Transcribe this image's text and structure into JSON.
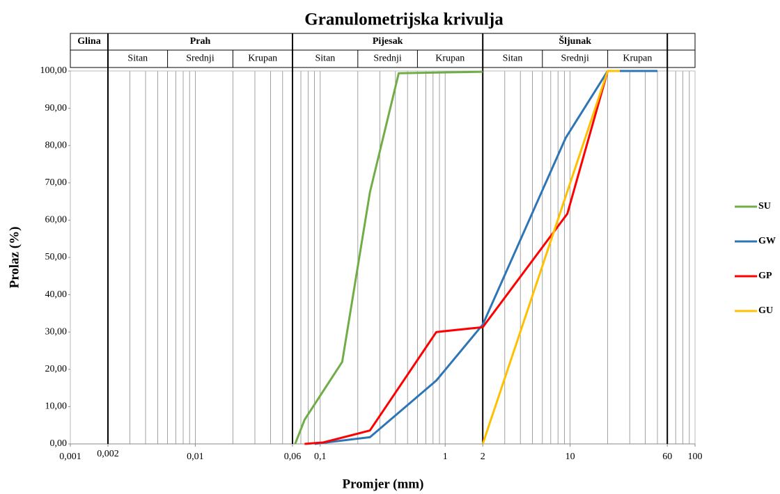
{
  "chart_data": {
    "type": "line",
    "title": "Granulometrijska krivulja",
    "xlabel": "Promjer (mm)",
    "ylabel": "Prolaz (%)",
    "xscale": "log",
    "xlim": [
      0.001,
      100
    ],
    "ylim": [
      0,
      100
    ],
    "xticks": [
      {
        "value": 0.001,
        "label": "0,001"
      },
      {
        "value": 0.002,
        "label": "0,002"
      },
      {
        "value": 0.01,
        "label": "0,01"
      },
      {
        "value": 0.06,
        "label": "0,06"
      },
      {
        "value": 0.1,
        "label": "0,1"
      },
      1,
      2,
      10,
      60,
      100
    ],
    "yticks": [
      {
        "value": 0,
        "label": "0,00"
      },
      {
        "value": 10,
        "label": "10,00"
      },
      {
        "value": 20,
        "label": "20,00"
      },
      {
        "value": 30,
        "label": "30,00"
      },
      {
        "value": 40,
        "label": "40,00"
      },
      {
        "value": 50,
        "label": "50,00"
      },
      {
        "value": 60,
        "label": "60,00"
      },
      {
        "value": 70,
        "label": "70,00"
      },
      {
        "value": 80,
        "label": "80,00"
      },
      {
        "value": 90,
        "label": "90,00"
      },
      {
        "value": 100,
        "label": "100,00"
      }
    ],
    "x_minor_gridlines": [
      0.001,
      0.002,
      0.003,
      0.004,
      0.005,
      0.006,
      0.007,
      0.008,
      0.009,
      0.01,
      0.02,
      0.03,
      0.04,
      0.05,
      0.06,
      0.07,
      0.08,
      0.09,
      0.1,
      0.2,
      0.3,
      0.4,
      0.5,
      0.6,
      0.7,
      0.8,
      0.9,
      1,
      2,
      3,
      4,
      5,
      6,
      7,
      8,
      9,
      10,
      20,
      30,
      40,
      50,
      60,
      70,
      80,
      90,
      100
    ],
    "fraction_boundaries": [
      0.002,
      0.06,
      2,
      60
    ],
    "fractions": [
      {
        "name": "Glina",
        "from": 0.001,
        "to": 0.002,
        "sub": []
      },
      {
        "name": "Prah",
        "from": 0.002,
        "to": 0.06,
        "sub": [
          {
            "name": "Sitan",
            "from": 0.002,
            "to": 0.006
          },
          {
            "name": "Srednji",
            "from": 0.006,
            "to": 0.02
          },
          {
            "name": "Krupan",
            "from": 0.02,
            "to": 0.06
          }
        ]
      },
      {
        "name": "Pijesak",
        "from": 0.06,
        "to": 2,
        "sub": [
          {
            "name": "Sitan",
            "from": 0.06,
            "to": 0.2
          },
          {
            "name": "Srednji",
            "from": 0.2,
            "to": 0.6
          },
          {
            "name": "Krupan",
            "from": 0.6,
            "to": 2
          }
        ]
      },
      {
        "name": "Šljunak",
        "from": 2,
        "to": 60,
        "sub": [
          {
            "name": "Sitan",
            "from": 2,
            "to": 6
          },
          {
            "name": "Srednji",
            "from": 6,
            "to": 20
          },
          {
            "name": "Krupan",
            "from": 20,
            "to": 60
          }
        ]
      }
    ],
    "legend": "right",
    "series": [
      {
        "name": "SU",
        "color": "#70ad47",
        "x": [
          0.063,
          0.075,
          0.15,
          0.25,
          0.425,
          2
        ],
        "values": [
          0,
          6.5,
          22,
          67.5,
          99.4,
          99.8
        ]
      },
      {
        "name": "GW",
        "color": "#2e75b6",
        "x": [
          0.09,
          0.25,
          0.85,
          2,
          9.2,
          20,
          50
        ],
        "values": [
          0,
          1.8,
          17,
          32,
          82,
          100,
          100
        ]
      },
      {
        "name": "GP",
        "color": "#ff0000",
        "x": [
          0.075,
          0.106,
          0.25,
          0.85,
          2,
          9.5,
          20
        ],
        "values": [
          0,
          0.4,
          3.6,
          30,
          31.3,
          61.7,
          100
        ]
      },
      {
        "name": "GU",
        "color": "#ffc000",
        "x": [
          2,
          20,
          25
        ],
        "values": [
          0,
          100,
          100
        ]
      }
    ]
  }
}
